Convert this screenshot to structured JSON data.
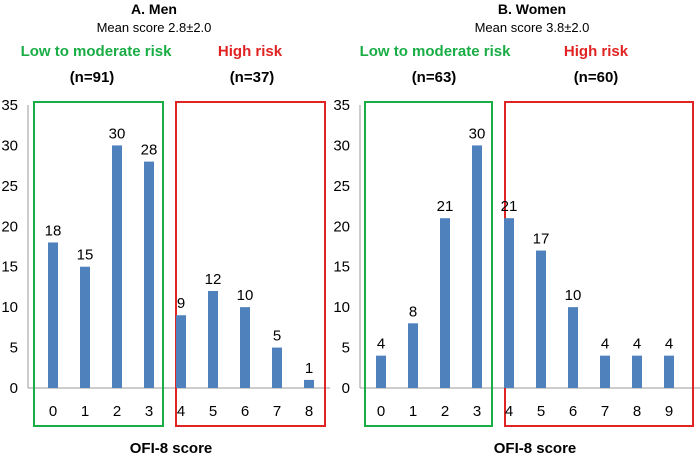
{
  "colors": {
    "bar": "#4f81bd",
    "low_box": "#1aad46",
    "high_box": "#e02424",
    "axis": "#999999"
  },
  "chart_data": [
    {
      "type": "bar",
      "title": "A. Men",
      "subtitle": "Mean score 2.8±2.0",
      "xlabel": "OFI-8 score",
      "ylabel": "",
      "ylim": [
        0,
        35
      ],
      "yticks": [
        "0",
        "5",
        "10",
        "15",
        "20",
        "25",
        "30",
        "35"
      ],
      "categories": [
        "0",
        "1",
        "2",
        "3",
        "4",
        "5",
        "6",
        "7",
        "8"
      ],
      "values": [
        18,
        15,
        30,
        28,
        9,
        12,
        10,
        5,
        1
      ],
      "groups": [
        {
          "label": "Low to moderate risk",
          "n": "(n=91)",
          "from": 0,
          "to": 3,
          "color": "#1aad46"
        },
        {
          "label": "High risk",
          "n": "(n=37)",
          "from": 4,
          "to": 8,
          "color": "#e02424"
        }
      ]
    },
    {
      "type": "bar",
      "title": "B. Women",
      "subtitle": "Mean score 3.8±2.0",
      "xlabel": "OFI-8 score",
      "ylabel": "",
      "ylim": [
        0,
        35
      ],
      "yticks": [
        "0",
        "5",
        "10",
        "15",
        "20",
        "25",
        "30",
        "35"
      ],
      "categories": [
        "0",
        "1",
        "2",
        "3",
        "4",
        "5",
        "6",
        "7",
        "8",
        "9"
      ],
      "values": [
        4,
        8,
        21,
        30,
        21,
        17,
        10,
        4,
        4,
        4
      ],
      "groups": [
        {
          "label": "Low to moderate risk",
          "n": "(n=63)",
          "from": 0,
          "to": 3,
          "color": "#1aad46"
        },
        {
          "label": "High risk",
          "n": "(n=60)",
          "from": 4,
          "to": 9,
          "color": "#e02424"
        }
      ]
    }
  ]
}
